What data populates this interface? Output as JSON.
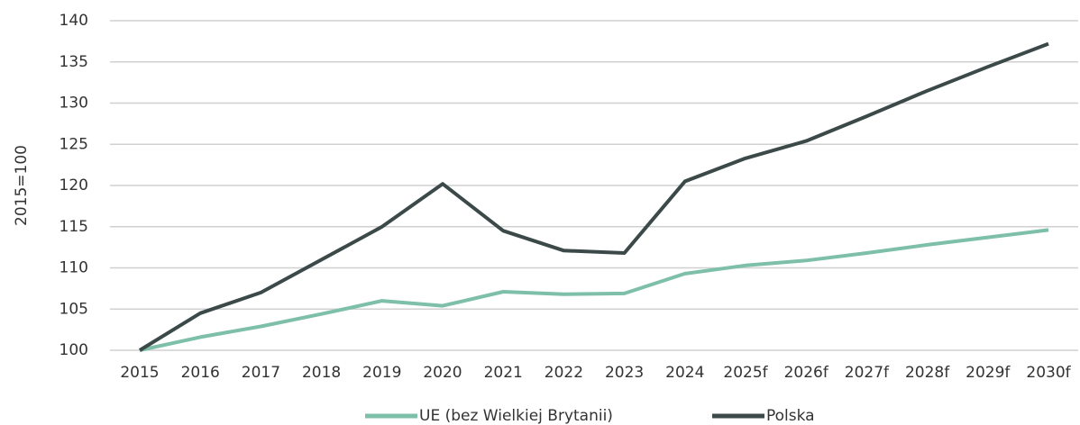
{
  "chart_data": {
    "type": "line",
    "y_label": "2015=100",
    "categories": [
      "2015",
      "2016",
      "2017",
      "2018",
      "2019",
      "2020",
      "2021",
      "2022",
      "2023",
      "2024",
      "2025f",
      "2026f",
      "2027f",
      "2028f",
      "2029f",
      "2030f"
    ],
    "series": [
      {
        "name": "UE (bez Wielkiej Brytanii)",
        "color": "#7dbfa9",
        "values": [
          100,
          101.6,
          102.9,
          104.4,
          106.0,
          105.4,
          107.1,
          106.8,
          106.9,
          109.3,
          110.3,
          110.9,
          111.8,
          112.8,
          113.7,
          114.6
        ]
      },
      {
        "name": "Polska",
        "color": "#3c4949",
        "values": [
          100,
          104.5,
          107.0,
          111.0,
          115.0,
          120.2,
          114.5,
          112.1,
          111.8,
          120.5,
          123.3,
          125.4,
          128.4,
          131.5,
          134.4,
          137.2
        ]
      }
    ],
    "ylim": [
      100,
      140
    ],
    "yticks": [
      100,
      105,
      110,
      115,
      120,
      125,
      130,
      135,
      140
    ],
    "grid": true,
    "legend": "bottom"
  }
}
